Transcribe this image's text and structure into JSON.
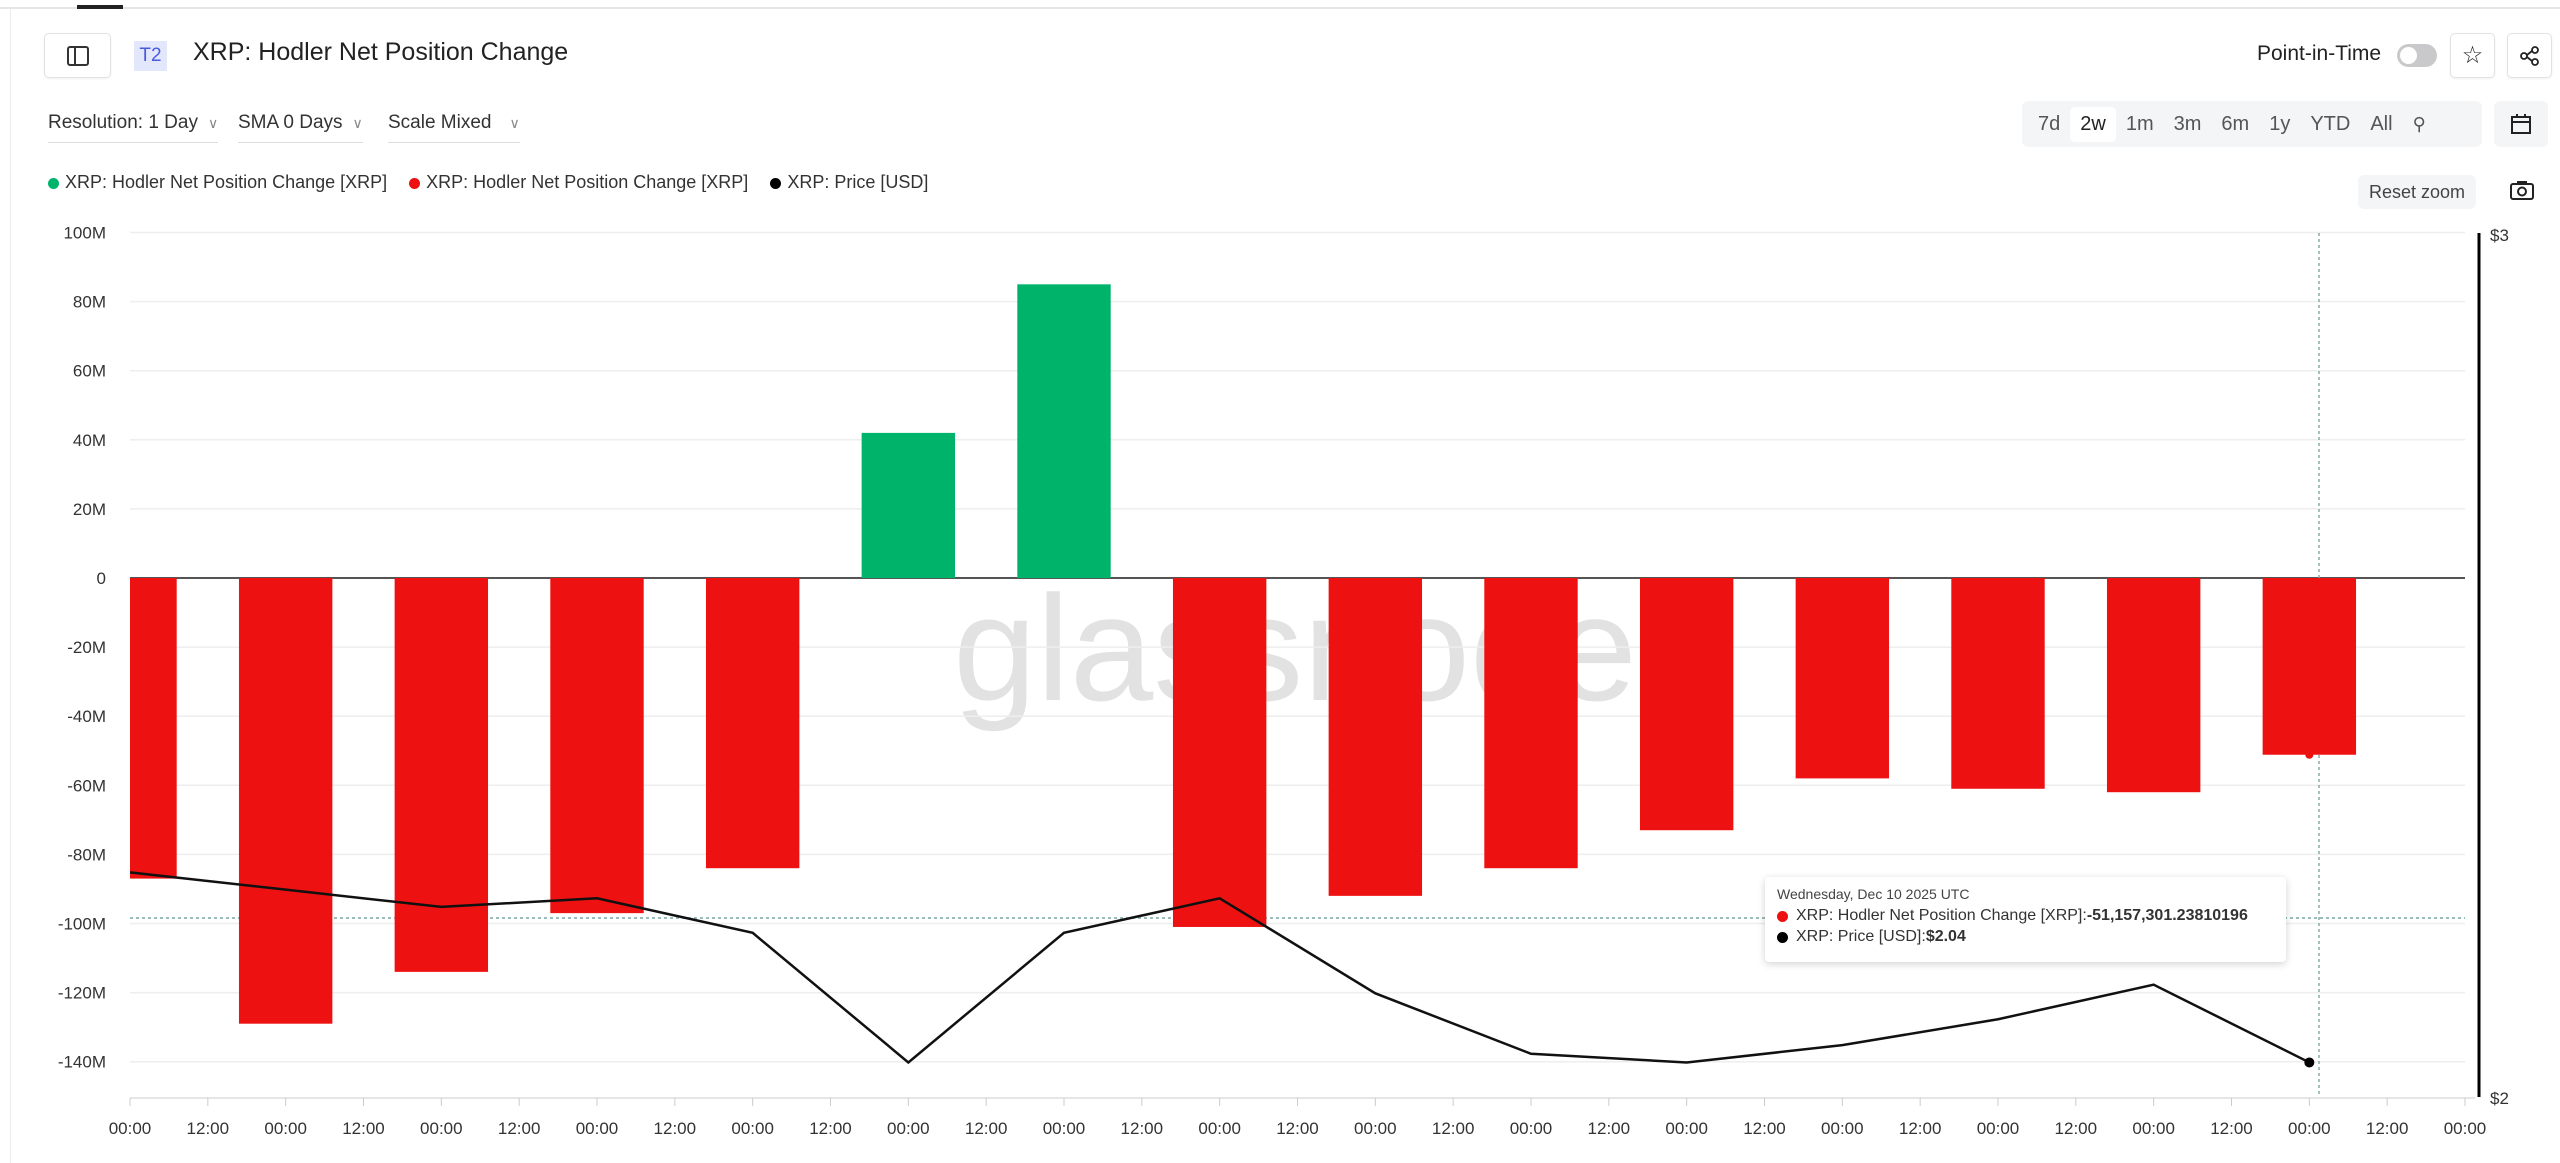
{
  "header": {
    "title": "XRP: Hodler Net Position Change",
    "tier_badge": "T2",
    "point_in_time_label": "Point-in-Time",
    "point_in_time_on": false
  },
  "controls": {
    "resolution": "Resolution: 1 Day",
    "sma": "SMA 0 Days",
    "scale": "Scale Mixed"
  },
  "ranges": {
    "items": [
      "7d",
      "2w",
      "1m",
      "3m",
      "6m",
      "1y",
      "YTD",
      "All"
    ],
    "active": "2w"
  },
  "reset_zoom": "Reset zoom",
  "watermark": "glassnode",
  "legend": [
    {
      "label": "XRP: Hodler Net Position Change [XRP]",
      "color": "#00b36b"
    },
    {
      "label": "XRP: Hodler Net Position Change [XRP]",
      "color": "#ee1111"
    },
    {
      "label": "XRP: Price [USD]",
      "color": "#000000"
    }
  ],
  "tooltip": {
    "date": "Wednesday, Dec 10 2025 UTC",
    "rows": [
      {
        "label": "XRP: Hodler Net Position Change [XRP]: ",
        "value": "-51,157,301.23810196",
        "color": "#ee1111"
      },
      {
        "label": "XRP: Price [USD]: ",
        "value": "$2.04",
        "color": "#000000"
      }
    ]
  },
  "chart_data": {
    "type": "bar",
    "x_tick_labels": [
      "00:00",
      "12:00",
      "00:00",
      "12:00",
      "00:00",
      "12:00",
      "00:00",
      "12:00",
      "00:00",
      "12:00",
      "00:00",
      "12:00",
      "00:00",
      "12:00",
      "00:00",
      "12:00",
      "00:00",
      "12:00",
      "00:00",
      "12:00",
      "00:00",
      "12:00",
      "00:00",
      "12:00",
      "00:00",
      "12:00",
      "00:00",
      "12:00",
      "00:00",
      "12:00",
      "00:00"
    ],
    "y_left": {
      "ticks": [
        "100M",
        "80M",
        "60M",
        "40M",
        "20M",
        "0",
        "-20M",
        "-40M",
        "-60M",
        "-80M",
        "-100M",
        "-120M",
        "-140M"
      ],
      "range": [
        -150000000,
        100000000
      ]
    },
    "y_right": {
      "ticks": [
        "$3",
        "$2"
      ],
      "range": [
        2,
        3
      ]
    },
    "grid": true,
    "series": [
      {
        "name": "XRP: Hodler Net Position Change [XRP]",
        "type": "bar",
        "values": [
          -87000000,
          -129000000,
          -114000000,
          -97000000,
          -84000000,
          42000000,
          85000000,
          -101000000,
          -92000000,
          -84000000,
          -73000000,
          -58000000,
          -61000000,
          -62000000,
          -51157301.24
        ],
        "positive_color": "#00b36b",
        "negative_color": "#ee1111"
      },
      {
        "name": "XRP: Price [USD]",
        "type": "line",
        "axis": "right",
        "values": [
          2.26,
          2.24,
          2.22,
          2.23,
          2.19,
          2.04,
          2.19,
          2.23,
          2.12,
          2.05,
          2.04,
          2.06,
          2.09,
          2.13,
          2.04
        ],
        "color": "#111111"
      }
    ]
  }
}
